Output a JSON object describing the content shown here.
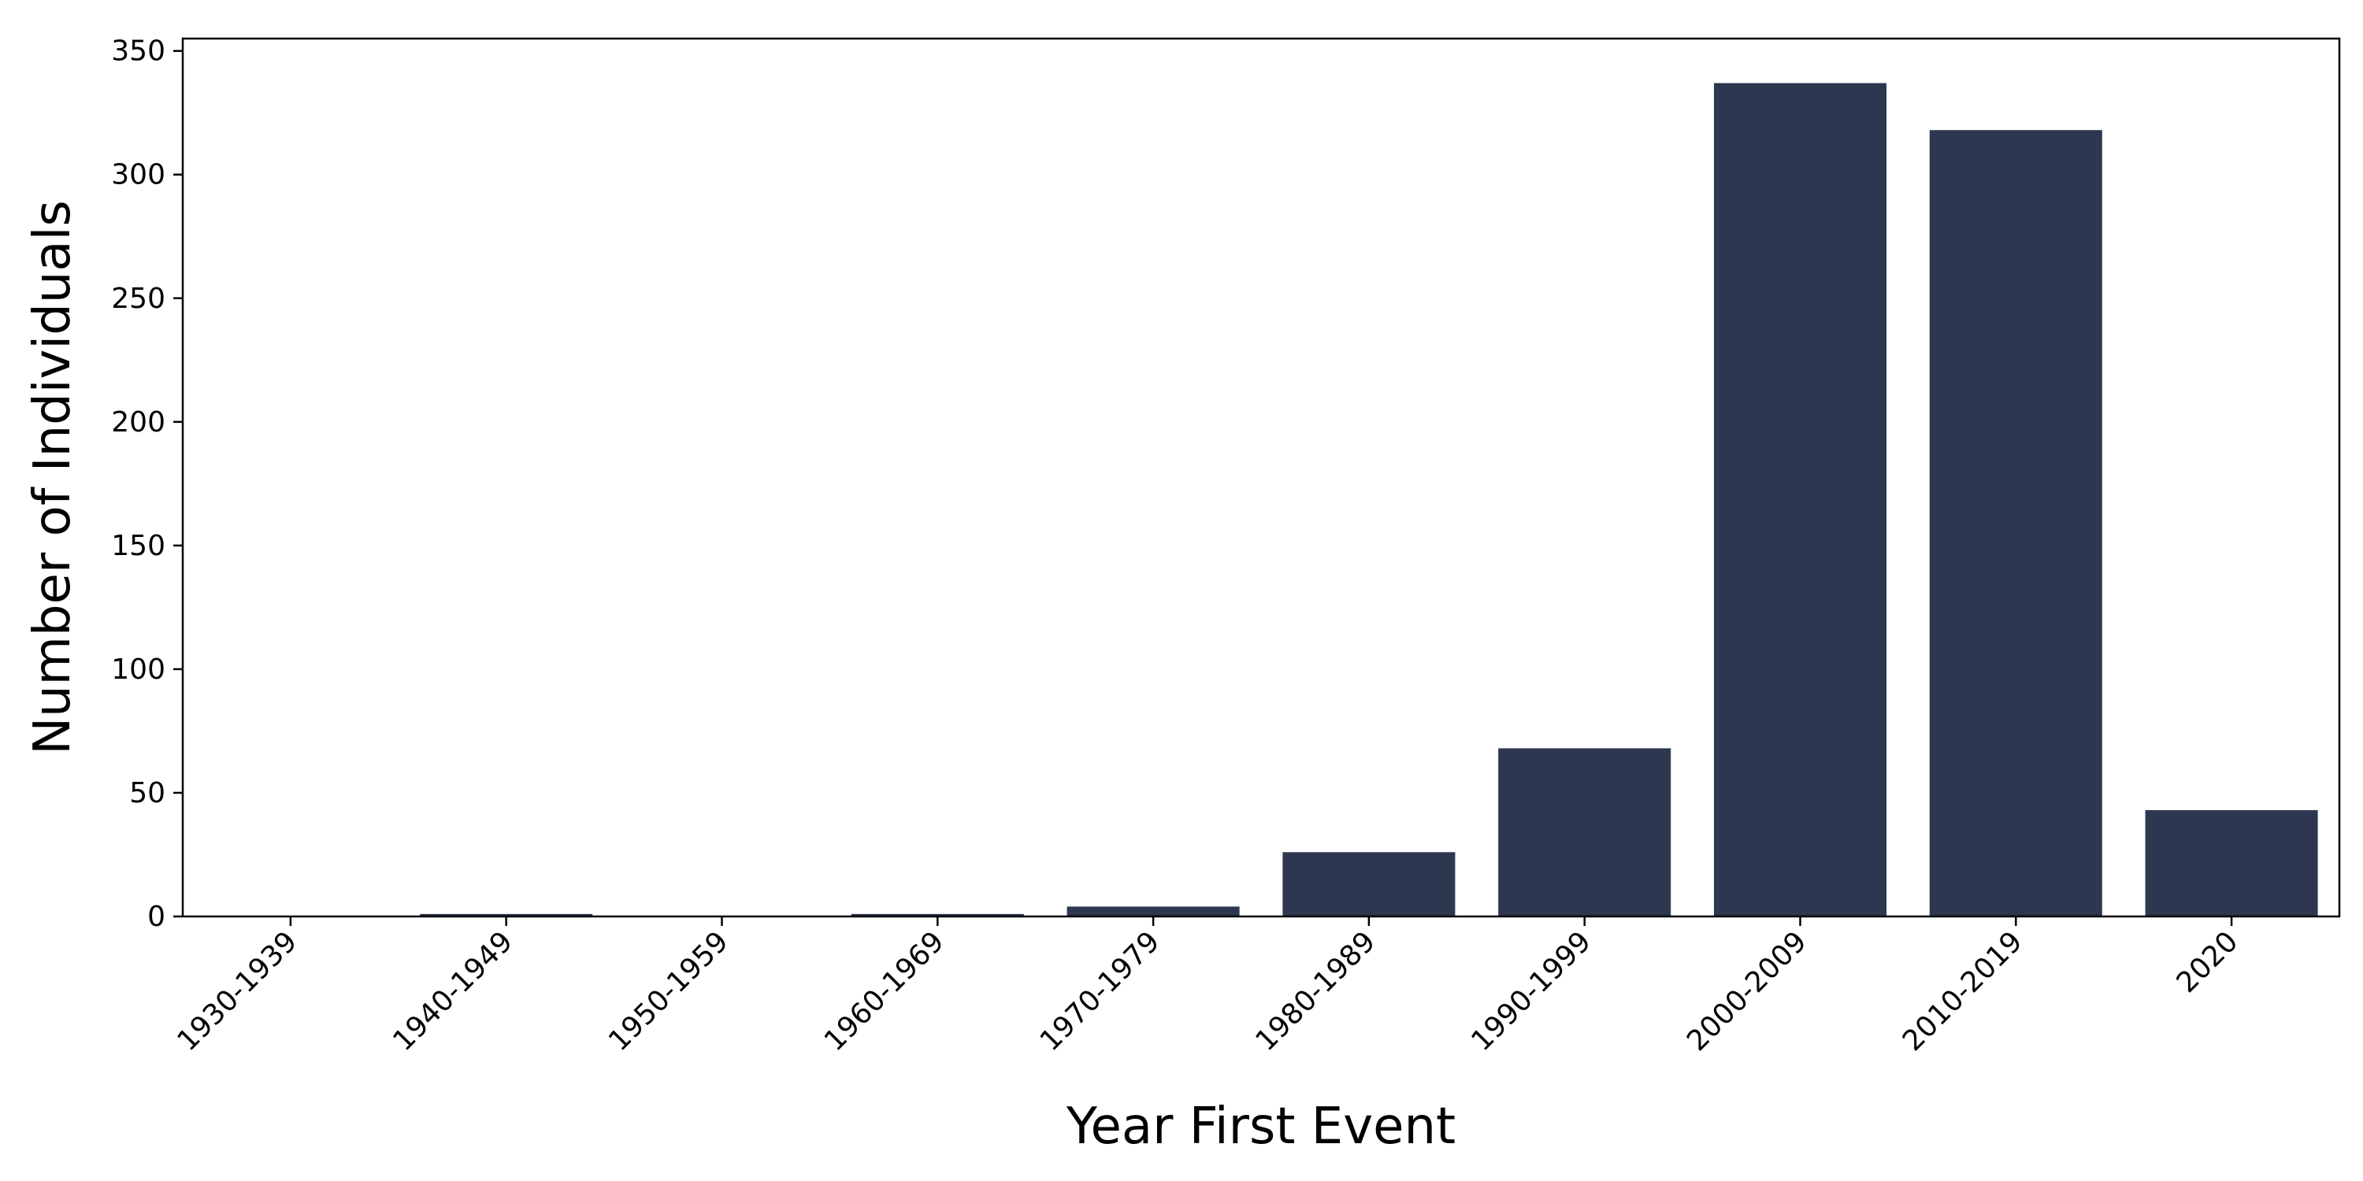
{
  "chart_data": {
    "type": "bar",
    "title": "",
    "xlabel": "Year First Event",
    "ylabel": "Number of Individuals",
    "categories": [
      "1930-1939",
      "1940-1949",
      "1950-1959",
      "1960-1969",
      "1970-1979",
      "1980-1989",
      "1990-1999",
      "2000-2009",
      "2010-2019",
      "2020"
    ],
    "values": [
      0,
      1,
      0,
      1,
      4,
      26,
      68,
      337,
      318,
      43
    ],
    "ylim": [
      0,
      355
    ],
    "yticks": [
      "0",
      "50",
      "100",
      "150",
      "200",
      "250",
      "300",
      "350"
    ],
    "grid": false,
    "legend": "none",
    "bar_color": "#2d3850"
  }
}
